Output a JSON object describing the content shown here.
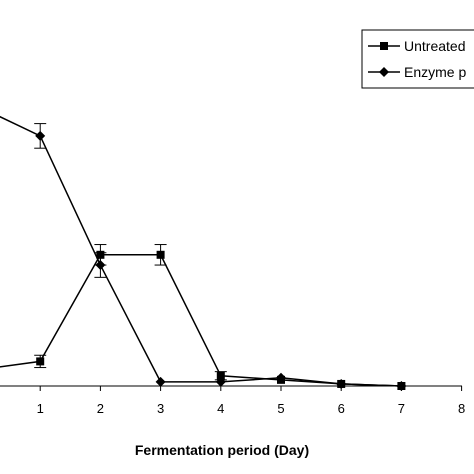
{
  "chart_data": {
    "type": "line",
    "title": "",
    "xlabel": "Fermentation period (Day)",
    "ylabel": "",
    "xlim": [
      0,
      8
    ],
    "x_ticks": [
      "1",
      "2",
      "3",
      "4",
      "5",
      "6",
      "7",
      "8"
    ],
    "grid": false,
    "legend_position": "top-right",
    "series": [
      {
        "name": "Untreated",
        "marker": "square",
        "color": "#000000",
        "x": [
          0,
          1,
          2,
          3,
          4,
          5,
          6,
          7
        ],
        "y": [
          0.08,
          0.12,
          0.64,
          0.64,
          0.05,
          0.03,
          0.01,
          0.0
        ],
        "error": [
          0,
          0.03,
          0.05,
          0.05,
          0.02,
          0,
          0,
          0
        ]
      },
      {
        "name": "Enzyme p",
        "marker": "diamond",
        "color": "#000000",
        "x": [
          0,
          1,
          2,
          3,
          4,
          5,
          6,
          7
        ],
        "y": [
          1.36,
          1.22,
          0.59,
          0.02,
          0.02,
          0.04,
          0.01,
          0.0
        ],
        "error": [
          0,
          0.06,
          0.06,
          0,
          0,
          0,
          0,
          0
        ]
      }
    ]
  }
}
